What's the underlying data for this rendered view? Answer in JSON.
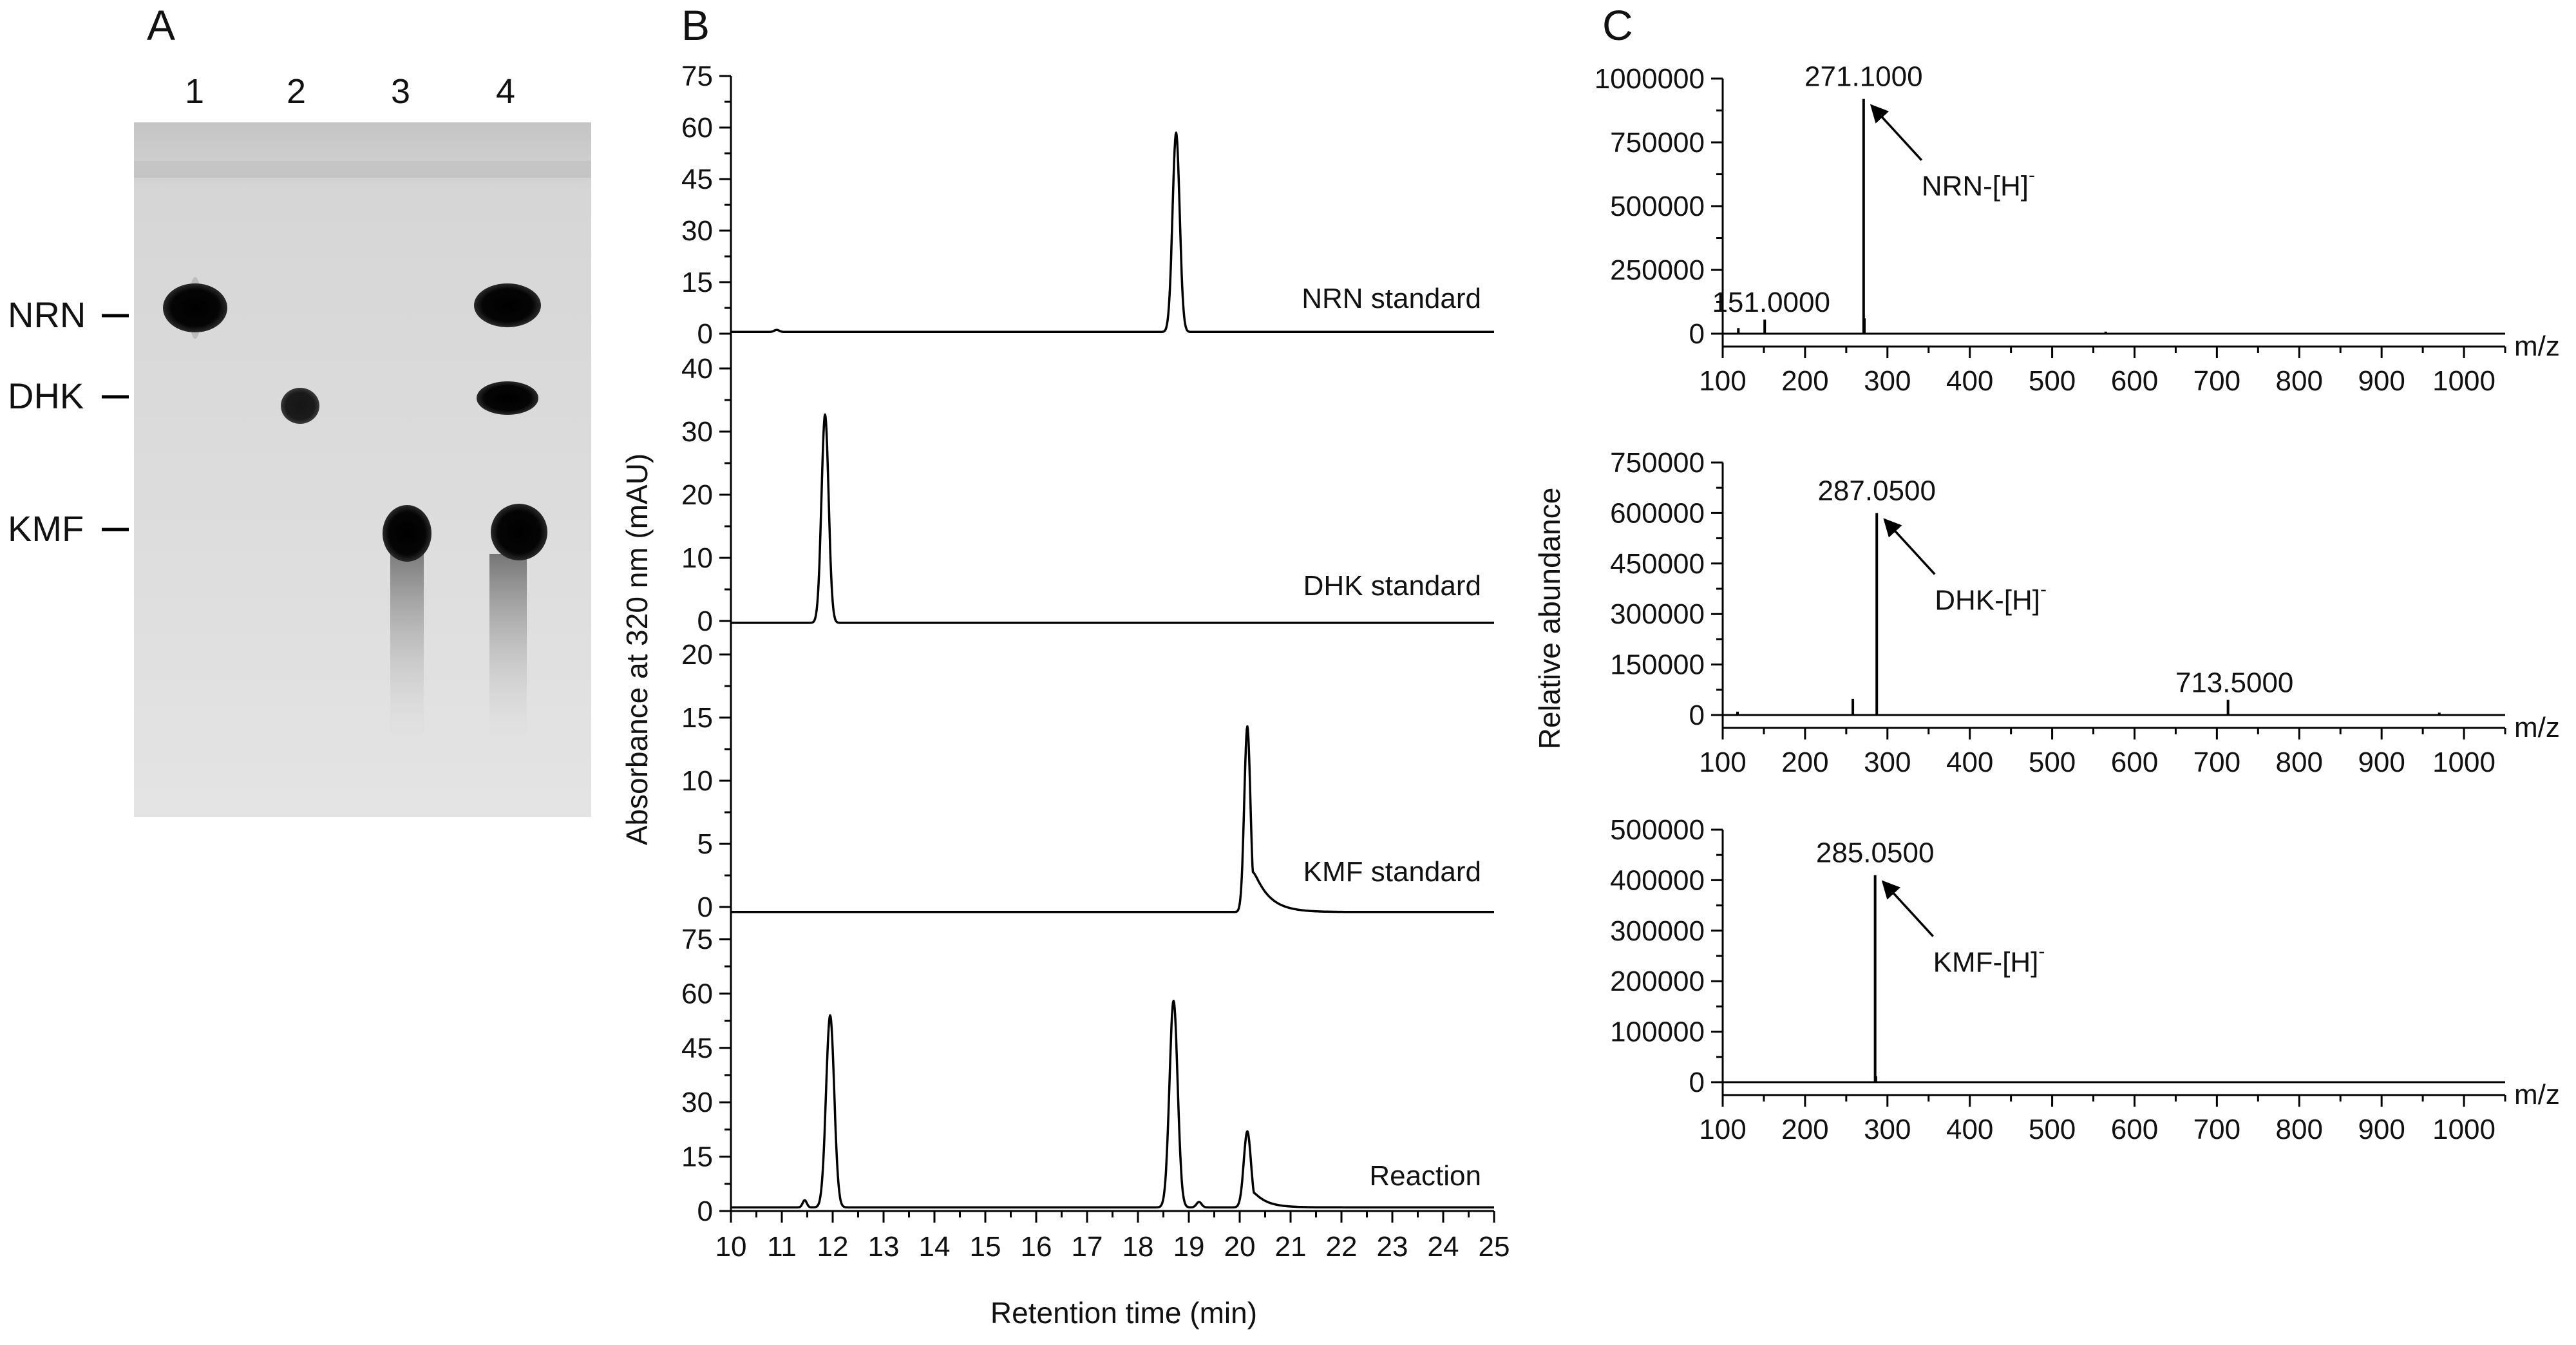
{
  "panels": {
    "A": {
      "letter": "A",
      "lanes": [
        "1",
        "2",
        "3",
        "4"
      ],
      "spot_labels": [
        "NRN",
        "DHK",
        "KMF"
      ],
      "spots": [
        {
          "lane": 1,
          "compound": "NRN"
        },
        {
          "lane": 2,
          "compound": "DHK"
        },
        {
          "lane": 3,
          "compound": "KMF"
        },
        {
          "lane": 4,
          "compound": "NRN"
        },
        {
          "lane": 4,
          "compound": "DHK"
        },
        {
          "lane": 4,
          "compound": "KMF"
        }
      ]
    },
    "B": {
      "letter": "B",
      "ylabel": "Absorbance at 320 nm (mAU)",
      "xlabel": "Retention time (min)",
      "x_ticks": [
        "10",
        "11",
        "12",
        "13",
        "14",
        "15",
        "16",
        "17",
        "18",
        "19",
        "20",
        "21",
        "22",
        "23",
        "24",
        "25"
      ]
    },
    "C": {
      "letter": "C",
      "ylabel": "Relative abundance",
      "x_unit": "m/z",
      "x_ticks": [
        "100",
        "200",
        "300",
        "400",
        "500",
        "600",
        "700",
        "800",
        "900",
        "1000"
      ]
    }
  },
  "chart_data": [
    {
      "type": "line",
      "panel": "B",
      "name": "NRN standard",
      "xlabel": "Retention time (min)",
      "ylabel": "Absorbance at 320 nm (mAU)",
      "xlim": [
        10,
        25
      ],
      "ylim": [
        0,
        75
      ],
      "y_ticks": [
        "0",
        "15",
        "30",
        "45",
        "60",
        "75"
      ],
      "baseline": 0.5,
      "peaks": [
        {
          "rt": 10.9,
          "height": 0.6,
          "width": 0.05,
          "tail": 0
        },
        {
          "rt": 18.75,
          "height": 58,
          "width": 0.07,
          "tail": 0
        }
      ]
    },
    {
      "type": "line",
      "panel": "B",
      "name": "DHK standard",
      "xlabel": "Retention time (min)",
      "ylabel": "Absorbance at 320 nm (mAU)",
      "xlim": [
        10,
        25
      ],
      "ylim": [
        0,
        40
      ],
      "y_ticks": [
        "0",
        "10",
        "20",
        "30",
        "40"
      ],
      "baseline": -0.3,
      "peaks": [
        {
          "rt": 11.85,
          "height": 33,
          "width": 0.07,
          "tail": 0
        }
      ]
    },
    {
      "type": "line",
      "panel": "B",
      "name": "KMF standard",
      "xlabel": "Retention time (min)",
      "ylabel": "Absorbance at 320 nm (mAU)",
      "xlim": [
        10,
        25
      ],
      "ylim": [
        0,
        20
      ],
      "y_ticks": [
        "0",
        "5",
        "10",
        "15",
        "20"
      ],
      "baseline": -0.4,
      "peaks": [
        {
          "rt": 20.15,
          "height": 14.7,
          "width": 0.06,
          "tail": 0.3
        }
      ]
    },
    {
      "type": "line",
      "panel": "B",
      "name": "Reaction",
      "xlabel": "Retention time (min)",
      "ylabel": "Absorbance at 320 nm (mAU)",
      "xlim": [
        10,
        25
      ],
      "ylim": [
        0,
        75
      ],
      "y_ticks": [
        "0",
        "15",
        "30",
        "45",
        "60",
        "75"
      ],
      "baseline": 1,
      "peaks": [
        {
          "rt": 11.45,
          "height": 2,
          "width": 0.04,
          "tail": 0
        },
        {
          "rt": 11.95,
          "height": 53,
          "width": 0.08,
          "tail": 0
        },
        {
          "rt": 18.7,
          "height": 57,
          "width": 0.08,
          "tail": 0
        },
        {
          "rt": 19.2,
          "height": 1.5,
          "width": 0.05,
          "tail": 0
        },
        {
          "rt": 20.15,
          "height": 21,
          "width": 0.07,
          "tail": 0.25
        }
      ]
    },
    {
      "type": "bar",
      "panel": "C",
      "name": "NRN",
      "ion": "NRN-[H]",
      "ion_sup": "-",
      "xlabel": "m/z",
      "xlim": [
        100,
        1050
      ],
      "ylim": [
        0,
        1000000
      ],
      "y_ticks": [
        "0",
        "250000",
        "500000",
        "750000",
        "1000000"
      ],
      "labeled_peaks": [
        {
          "label": "271.1000",
          "mz": 271.1,
          "abundance": 920000,
          "arrow": true
        },
        {
          "label": "151.0000",
          "mz": 151.0,
          "abundance": 55000,
          "arrow": false
        }
      ],
      "peaks": [
        {
          "mz": 119,
          "abundance": 22000
        },
        {
          "mz": 151,
          "abundance": 55000
        },
        {
          "mz": 271.1,
          "abundance": 920000
        },
        {
          "mz": 272,
          "abundance": 60000
        },
        {
          "mz": 565,
          "abundance": 8000
        }
      ]
    },
    {
      "type": "bar",
      "panel": "C",
      "name": "DHK",
      "ion": "DHK-[H]",
      "ion_sup": "-",
      "xlabel": "m/z",
      "xlim": [
        100,
        1050
      ],
      "ylim": [
        0,
        750000
      ],
      "y_ticks": [
        "0",
        "150000",
        "300000",
        "450000",
        "600000",
        "750000"
      ],
      "labeled_peaks": [
        {
          "label": "287.0500",
          "mz": 287.05,
          "abundance": 600000,
          "arrow": true
        },
        {
          "label": "713.5000",
          "mz": 713.5,
          "abundance": 45000,
          "arrow": false
        }
      ],
      "peaks": [
        {
          "mz": 118,
          "abundance": 10000
        },
        {
          "mz": 258,
          "abundance": 48000
        },
        {
          "mz": 287.05,
          "abundance": 600000
        },
        {
          "mz": 713.5,
          "abundance": 45000
        },
        {
          "mz": 970,
          "abundance": 7000
        }
      ]
    },
    {
      "type": "bar",
      "panel": "C",
      "name": "KMF",
      "ion": "KMF-[H]",
      "ion_sup": "-",
      "xlabel": "m/z",
      "xlim": [
        100,
        1050
      ],
      "ylim": [
        0,
        500000
      ],
      "y_ticks": [
        "0",
        "100000",
        "200000",
        "300000",
        "400000",
        "500000"
      ],
      "labeled_peaks": [
        {
          "label": "285.0500",
          "mz": 285.05,
          "abundance": 410000,
          "arrow": true
        }
      ],
      "peaks": [
        {
          "mz": 285.05,
          "abundance": 410000
        },
        {
          "mz": 286,
          "abundance": 12000
        }
      ]
    }
  ]
}
